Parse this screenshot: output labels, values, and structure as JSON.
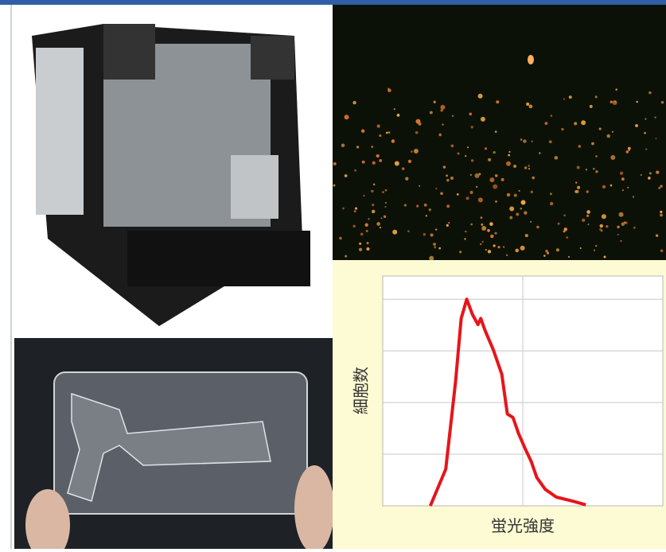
{
  "chart_data": {
    "type": "line",
    "xlabel": "蛍光強度",
    "ylabel": "細胞数",
    "xlim": [
      0,
      2
    ],
    "ylim": [
      0,
      4.45
    ],
    "x": [
      0.34,
      0.45,
      0.52,
      0.56,
      0.6,
      0.64,
      0.68,
      0.7,
      0.73,
      0.79,
      0.85,
      0.89,
      0.93,
      0.97,
      1.02,
      1.06,
      1.1,
      1.16,
      1.24,
      1.36,
      1.45
    ],
    "series": [
      {
        "color": "#e8141a",
        "values": [
          0,
          0.71,
          2.4,
          3.63,
          4.0,
          3.71,
          3.51,
          3.63,
          3.4,
          3.02,
          2.55,
          1.78,
          1.71,
          1.4,
          1.09,
          0.86,
          0.55,
          0.32,
          0.17,
          0.09,
          0.02
        ]
      }
    ],
    "grid": true
  }
}
